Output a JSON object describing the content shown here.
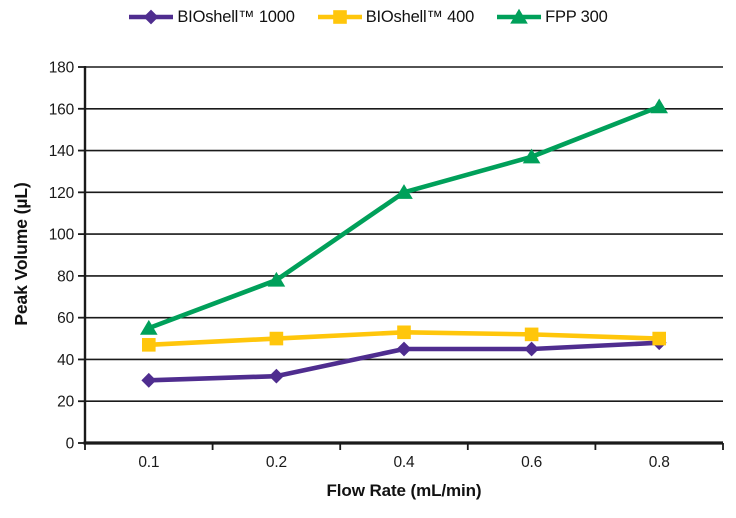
{
  "chart_data": {
    "type": "line",
    "title": "",
    "xlabel": "Flow Rate (mL/min)",
    "ylabel": "Peak Volume (µL)",
    "categories": [
      "0.1",
      "0.2",
      "0.4",
      "0.6",
      "0.8"
    ],
    "x_axis_type": "category (labels centered between boundary tick marks)",
    "ylim": [
      0,
      180
    ],
    "y_ticks": [
      0,
      20,
      40,
      60,
      80,
      100,
      120,
      140,
      160,
      180
    ],
    "grid": "horizontal gridlines on, vertical off",
    "legend_position": "top-center",
    "axis_color": "#1a1a1a",
    "background_color": "#ffffff",
    "series": [
      {
        "name": "BIOshell™ 1000",
        "marker": "diamond",
        "color": "#4F2D8F",
        "values": [
          30,
          32,
          45,
          45,
          48
        ]
      },
      {
        "name": "BIOshell™ 400",
        "marker": "square",
        "color": "#FFC60B",
        "values": [
          47,
          50,
          53,
          52,
          50
        ]
      },
      {
        "name": "FPP 300",
        "marker": "triangle",
        "color": "#00A05A",
        "values": [
          55,
          78,
          120,
          137,
          161
        ]
      }
    ],
    "draw_order": [
      2,
      0,
      1
    ]
  }
}
